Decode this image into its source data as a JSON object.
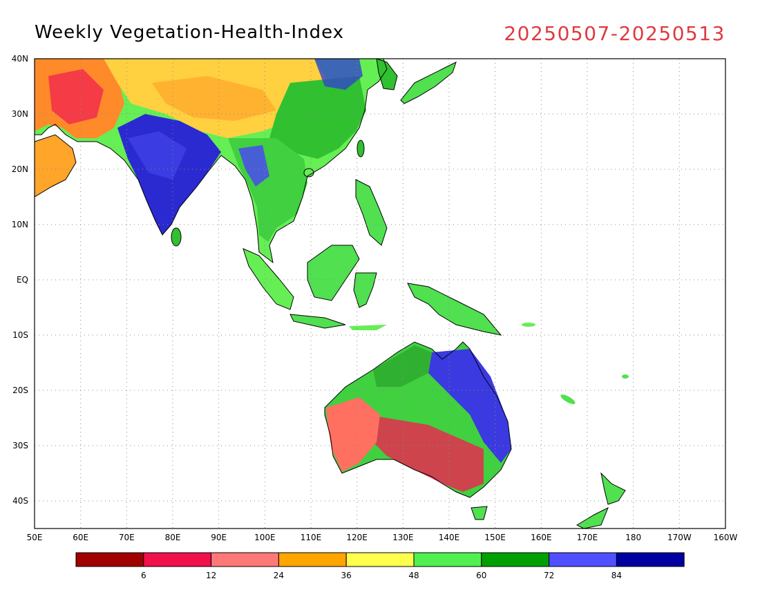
{
  "title": "Weekly Vegetation-Health-Index",
  "date_range": "20250507-20250513",
  "lat_labels": [
    "40N",
    "30N",
    "20N",
    "10N",
    "EQ",
    "10S",
    "20S",
    "30S",
    "40S"
  ],
  "lon_labels": [
    "50E",
    "60E",
    "70E",
    "80E",
    "90E",
    "100E",
    "110E",
    "120E",
    "130E",
    "140E",
    "150E",
    "160E",
    "170E",
    "180",
    "170W",
    "160W"
  ],
  "colorbar": {
    "colors": [
      "#a00000",
      "#f0104a",
      "#ff7878",
      "#ffa500",
      "#ffff50",
      "#50f050",
      "#00a000",
      "#5050ff",
      "#0000a0"
    ],
    "tick_labels": [
      "6",
      "12",
      "24",
      "36",
      "48",
      "60",
      "72",
      "84"
    ]
  },
  "colors": {
    "ocean": "#ffffff",
    "coast": "#000000",
    "grid": "#8a8a8a"
  }
}
